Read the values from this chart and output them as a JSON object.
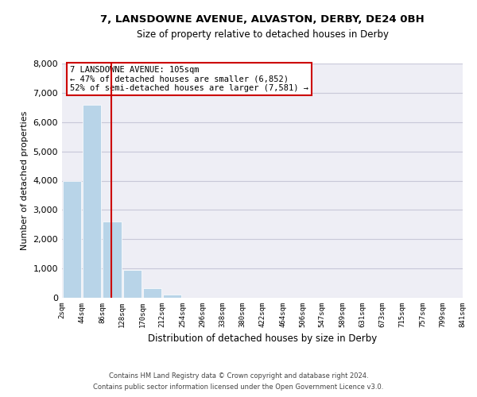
{
  "title": "7, LANSDOWNE AVENUE, ALVASTON, DERBY, DE24 0BH",
  "subtitle": "Size of property relative to detached houses in Derby",
  "xlabel": "Distribution of detached houses by size in Derby",
  "ylabel": "Number of detached properties",
  "bar_color": "#b8d4e8",
  "annotation_box": {
    "line1": "7 LANSDOWNE AVENUE: 105sqm",
    "line2": "← 47% of detached houses are smaller (6,852)",
    "line3": "52% of semi-detached houses are larger (7,581) →"
  },
  "property_size": 105,
  "bin_edges": [
    2,
    44,
    86,
    128,
    170,
    212,
    254,
    296,
    338,
    380,
    422,
    464,
    506,
    547,
    589,
    631,
    673,
    715,
    757,
    799,
    841
  ],
  "bin_counts": [
    4000,
    6600,
    2600,
    950,
    330,
    120,
    0,
    0,
    0,
    0,
    0,
    0,
    0,
    0,
    0,
    0,
    0,
    0,
    0,
    0
  ],
  "ylim": [
    0,
    8000
  ],
  "yticks": [
    0,
    1000,
    2000,
    3000,
    4000,
    5000,
    6000,
    7000,
    8000
  ],
  "footnote1": "Contains HM Land Registry data © Crown copyright and database right 2024.",
  "footnote2": "Contains public sector information licensed under the Open Government Licence v3.0.",
  "vline_color": "#cc0000",
  "box_edge_color": "#cc0000",
  "grid_color": "#c8c8d8",
  "background_color": "#eeeef5"
}
